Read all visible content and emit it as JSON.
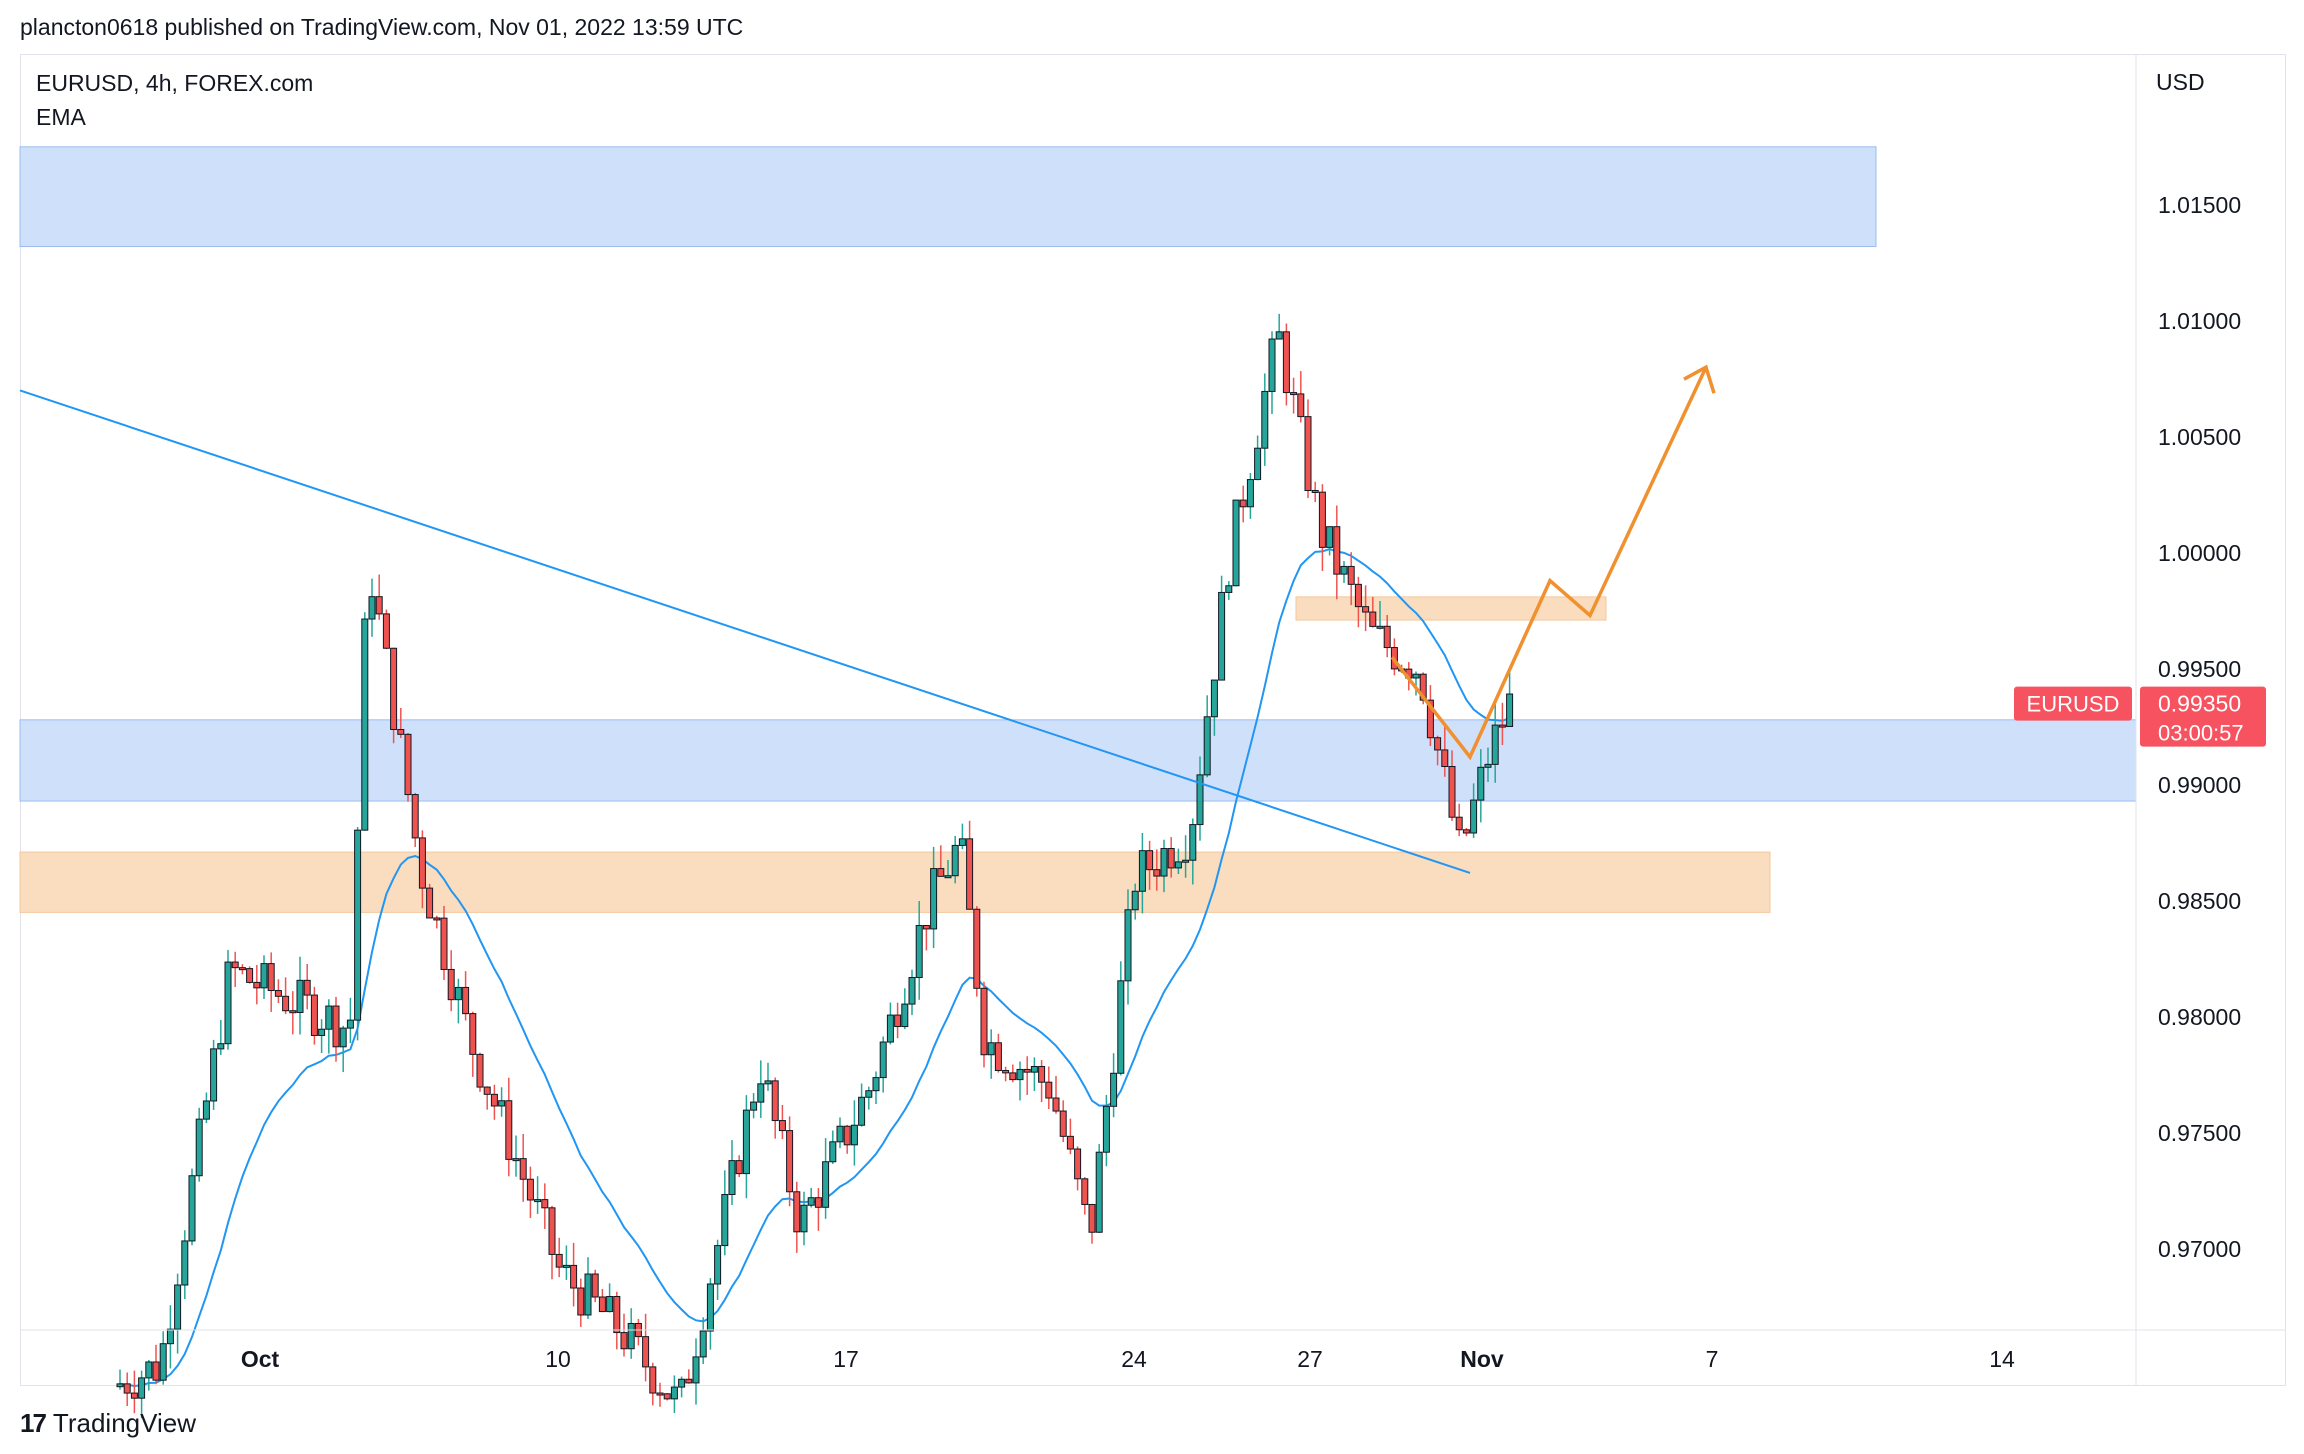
{
  "header": {
    "published_text": "plancton0618 published on TradingView.com, Nov 01, 2022 13:59 UTC"
  },
  "legend": {
    "symbol": "EURUSD, 4h, FOREX.com",
    "indicator": "EMA"
  },
  "footer": {
    "brand": "TradingView"
  },
  "colors": {
    "up_candle": "#26a69a",
    "down_candle": "#ef5350",
    "candle_body": "#131722",
    "ema_line": "#2196f3",
    "trendline": "#2196f3",
    "blue_zone": "#cfe0fb",
    "orange_zone": "#fadcbe",
    "projection": "#f0902f",
    "price_label": "#f7525f"
  },
  "chart_data": {
    "type": "candlestick",
    "symbol": "EURUSD",
    "timeframe": "4h",
    "currency_label": "USD",
    "ylim": [
      0.9665,
      1.0215
    ],
    "y_ticks": [
      "1.01500",
      "1.01000",
      "1.00500",
      "1.00000",
      "0.99500",
      "0.99000",
      "0.98500",
      "0.98000",
      "0.97500",
      "0.97000"
    ],
    "x_ticks": [
      "Oct",
      "10",
      "17",
      "24",
      "27",
      "Nov",
      "7",
      "14"
    ],
    "last_price": {
      "symbol_label": "EURUSD",
      "price": "0.99350",
      "countdown": "03:00:57"
    },
    "key_prices": [
      {
        "label": "Sep 28 low",
        "value": 0.964
      },
      {
        "label": "Oct 4 high",
        "value": 0.9999
      },
      {
        "label": "Oct 13 low",
        "value": 0.9632
      },
      {
        "label": "Oct 18 high",
        "value": 0.9875
      },
      {
        "label": "Oct 21 low",
        "value": 0.9705
      },
      {
        "label": "Oct 26 high",
        "value": 1.0094
      },
      {
        "label": "Oct 31 low",
        "value": 0.987
      },
      {
        "label": "Nov 1 last",
        "value": 0.9935
      }
    ],
    "zones": [
      {
        "color": "blue",
        "from": 1.0132,
        "to": 1.0175
      },
      {
        "color": "blue",
        "from": 0.9893,
        "to": 0.9928
      },
      {
        "color": "orange",
        "from": 0.9845,
        "to": 0.9871
      },
      {
        "color": "orange",
        "from": 0.9971,
        "to": 0.9981
      }
    ],
    "annotations": [
      "descending trendline",
      "projection path (orange zig-zag with arrow)"
    ],
    "series": [
      {
        "name": "EMA"
      }
    ],
    "grid": false
  }
}
